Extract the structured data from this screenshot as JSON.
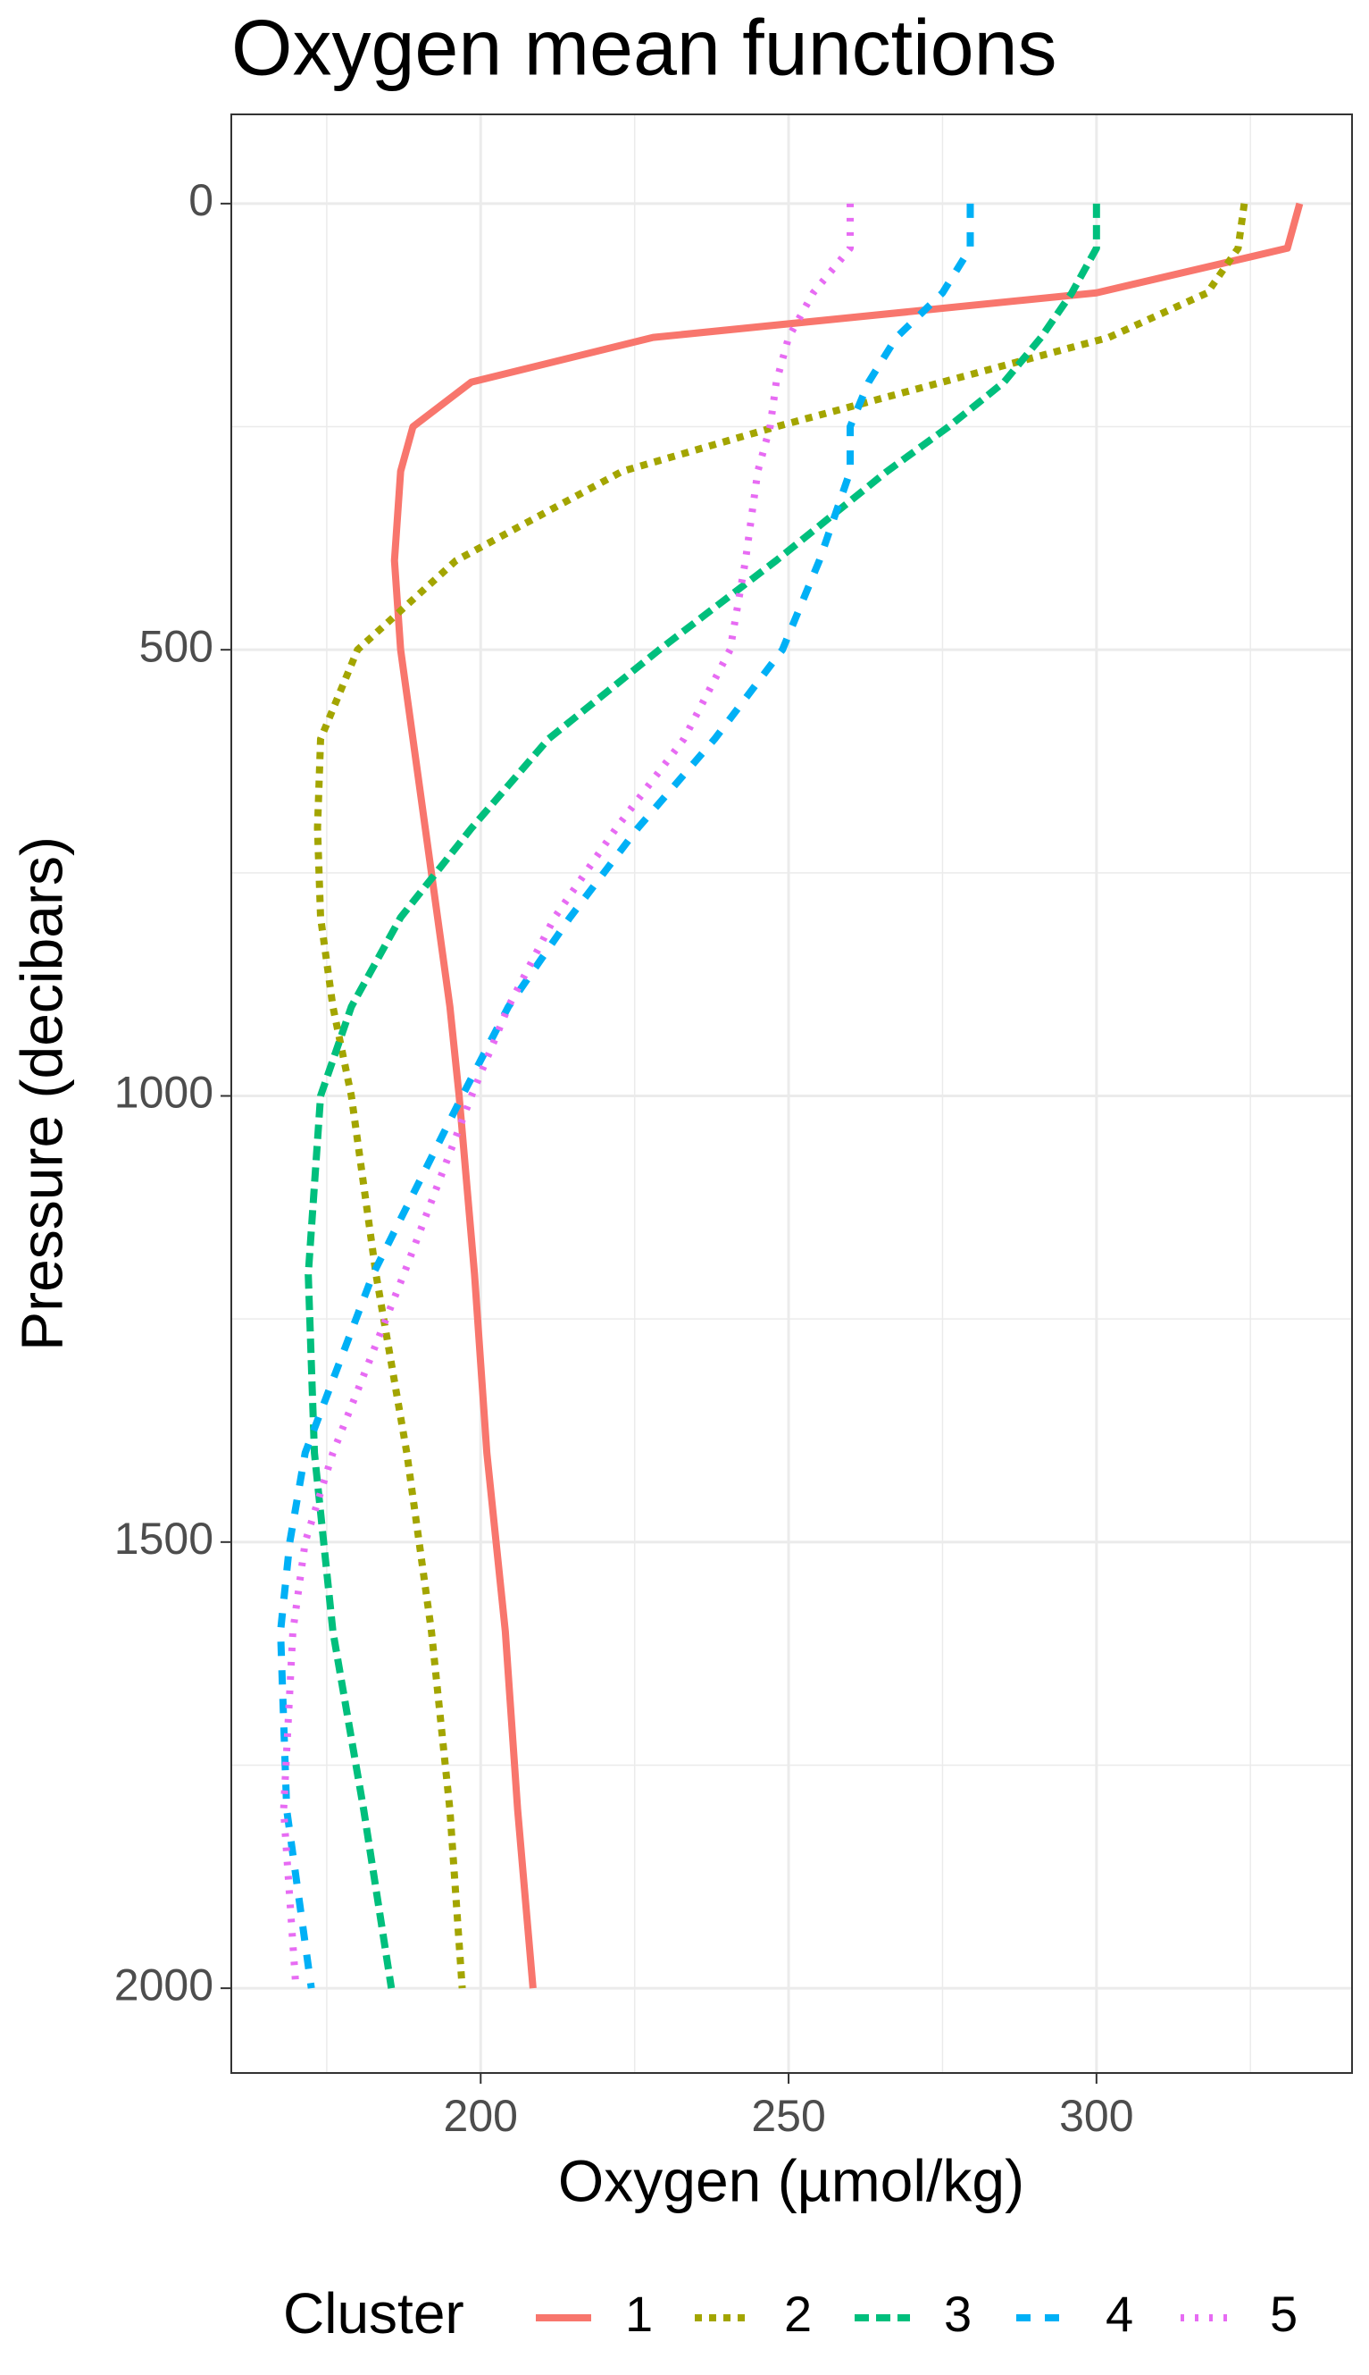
{
  "chart_data": {
    "type": "line",
    "title": "Oxygen mean functions",
    "x_label": "Oxygen (µmol/kg)",
    "y_label": "Pressure (decibars)",
    "legend_title": "Cluster",
    "legend_position": "bottom",
    "y_reversed": true,
    "grid": true,
    "xlim": [
      159.5,
      341.5
    ],
    "ylim": [
      -100,
      2095
    ],
    "xticks": [
      200,
      250,
      300
    ],
    "yticks": [
      0,
      500,
      1000,
      1500,
      2000
    ],
    "xminor": [
      175,
      225,
      275,
      325
    ],
    "yminor": [
      250,
      750,
      1250,
      1750
    ],
    "pressure": [
      0,
      50,
      100,
      150,
      200,
      250,
      300,
      400,
      500,
      600,
      700,
      800,
      900,
      1000,
      1200,
      1400,
      1500,
      1600,
      1800,
      2000
    ],
    "series": [
      {
        "name": "1",
        "color": "#F8766D",
        "linetype": "solid",
        "values": [
          333,
          331,
          300,
          228,
          198.5,
          189,
          187,
          186,
          187,
          189,
          191,
          193,
          195,
          196.5,
          199,
          201,
          202.5,
          204,
          206,
          208.5
        ]
      },
      {
        "name": "2",
        "color": "#A3A500",
        "linetype": "22",
        "values": [
          324,
          323,
          318,
          302,
          275,
          248,
          223,
          196,
          180,
          174,
          173.5,
          174,
          176,
          179,
          183,
          188,
          190,
          192,
          195,
          197
        ]
      },
      {
        "name": "3",
        "color": "#00BF7D",
        "linetype": "42",
        "values": [
          300,
          300,
          296,
          291,
          285,
          276,
          266,
          248,
          229,
          211,
          198.5,
          187,
          179,
          174,
          172,
          173,
          174.5,
          176,
          181,
          185.5
        ]
      },
      {
        "name": "4",
        "color": "#00B0F6",
        "linetype": "44",
        "values": [
          279.5,
          279.5,
          275,
          267.5,
          263,
          260,
          260,
          255,
          249,
          238,
          225.5,
          214.5,
          204.5,
          197,
          182.5,
          171.5,
          169,
          167.5,
          168.5,
          172.5
        ]
      },
      {
        "name": "5",
        "color": "#E76BF3",
        "linetype": "13",
        "values": [
          260,
          260,
          254,
          250,
          248,
          247,
          245,
          243,
          240.5,
          233,
          222,
          212,
          204.5,
          198.5,
          187.5,
          176,
          171.5,
          169.5,
          168,
          170
        ]
      }
    ]
  }
}
